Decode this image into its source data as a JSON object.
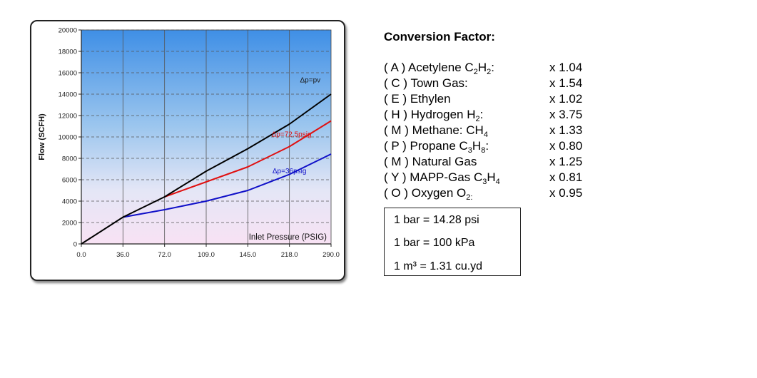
{
  "chart_data": {
    "type": "line",
    "xlabel": "Inlet Pressure (PSIG)",
    "ylabel": "Flow  (SCFH)",
    "x_ticks": [
      "0.0",
      "36.0",
      "72.0",
      "109.0",
      "145.0",
      "218.0",
      "290.0"
    ],
    "y_ticks": [
      "0",
      "2000",
      "4000",
      "6000",
      "8000",
      "10000",
      "12000",
      "14000",
      "16000",
      "18000",
      "20000"
    ],
    "ylim": [
      0,
      20000
    ],
    "grid": true,
    "series": [
      {
        "name": "Δp=pv",
        "color": "#000000",
        "points": [
          [
            0,
            0
          ],
          [
            1,
            2500
          ],
          [
            2,
            4400
          ],
          [
            3,
            6800
          ],
          [
            4,
            8900
          ],
          [
            5,
            11200
          ],
          [
            6,
            14000
          ]
        ]
      },
      {
        "name": "Δp=72.5psig",
        "color": "#e01010",
        "points": [
          [
            2,
            4400
          ],
          [
            3,
            5800
          ],
          [
            4,
            7200
          ],
          [
            5,
            9100
          ],
          [
            6,
            11500
          ]
        ]
      },
      {
        "name": "Δp=36psig",
        "color": "#1010c8",
        "points": [
          [
            1,
            2500
          ],
          [
            2,
            3200
          ],
          [
            3,
            4000
          ],
          [
            4,
            5000
          ],
          [
            5,
            6500
          ],
          [
            6,
            8400
          ]
        ]
      }
    ]
  },
  "factors": {
    "title": "Conversion Factor:",
    "items": [
      {
        "pre": "( A ) Acetylene C",
        "s1": "2",
        "mid": "H",
        "s2": "2",
        "post": ":",
        "mult": "x 1.04"
      },
      {
        "pre": "( C ) Town Gas:",
        "mult": "x 1.54"
      },
      {
        "pre": "( E ) Ethylen",
        "mult": "x 1.02"
      },
      {
        "pre": "( H ) Hydrogen H",
        "s1": "2",
        "post": ":",
        "mult": "x 3.75"
      },
      {
        "pre": "( M ) Methane: CH",
        "s1": "4",
        "mult": "x 1.33"
      },
      {
        "pre": "( P ) Propane C",
        "s1": "3",
        "mid": "H",
        "s2": "8",
        "post": ":",
        "mult": "x 0.80"
      },
      {
        "pre": "( M ) Natural Gas",
        "mult": "x 1.25"
      },
      {
        "pre": "( Y ) MAPP-Gas C",
        "s1": "3",
        "mid": "H",
        "s2": "4",
        "mult": "x 0.81"
      },
      {
        "pre": "( O ) Oxygen O",
        "s1": "2:",
        "mult": "x 0.95"
      }
    ]
  },
  "units": [
    "1 bar = 14.28 psi",
    "1 bar = 100 kPa",
    "1 m³ =  1.31 cu.yd"
  ]
}
